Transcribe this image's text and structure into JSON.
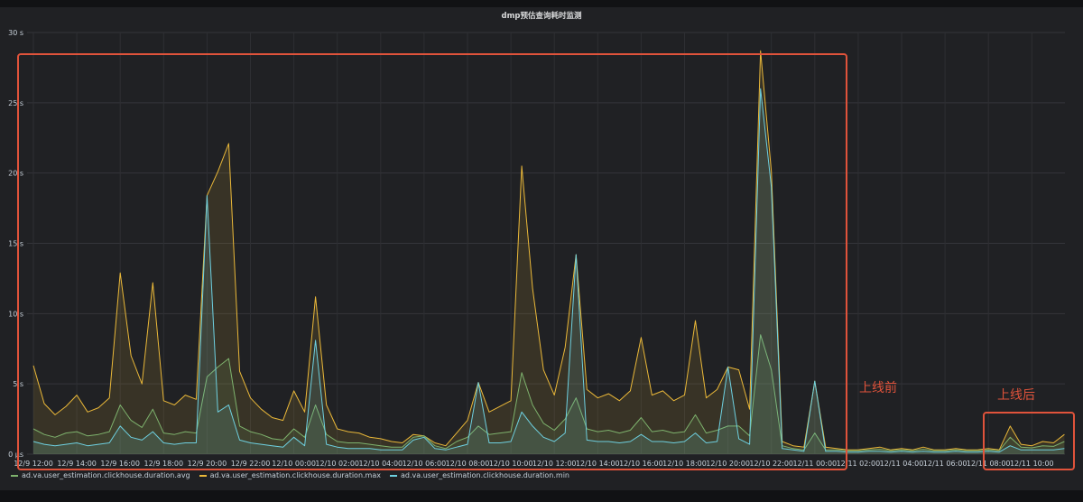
{
  "panel": {
    "title": "dmp预估查询耗时监测"
  },
  "annotations": [
    {
      "label": "上线前",
      "color": "#e0533b"
    },
    {
      "label": "上线后",
      "color": "#e0533b"
    }
  ],
  "chart_data": {
    "type": "line",
    "title": "dmp预估查询耗时监测",
    "xlabel": "",
    "ylabel": "",
    "ylim": [
      0,
      30
    ],
    "y_unit": "s",
    "grid": true,
    "legend_position": "bottom-left",
    "y_tick_labels": [
      "0 µs",
      "5 s",
      "10 s",
      "15 s",
      "20 s",
      "25 s",
      "30 s"
    ],
    "y_ticks": [
      0,
      5,
      10,
      15,
      20,
      25,
      30
    ],
    "x_tick_labels": [
      "12/9 12:00",
      "12/9 14:00",
      "12/9 16:00",
      "12/9 18:00",
      "12/9 20:00",
      "12/9 22:00",
      "12/10 00:00",
      "12/10 02:00",
      "12/10 04:00",
      "12/10 06:00",
      "12/10 08:00",
      "12/10 10:00",
      "12/10 12:00",
      "12/10 14:00",
      "12/10 16:00",
      "12/10 18:00",
      "12/10 20:00",
      "12/10 22:00",
      "12/11 00:00",
      "12/11 02:00",
      "12/11 04:00",
      "12/11 06:00",
      "12/11 08:00",
      "12/11 10:00"
    ],
    "x": [
      "12/9 12:00",
      "12/9 12:30",
      "12/9 13:00",
      "12/9 13:30",
      "12/9 14:00",
      "12/9 14:30",
      "12/9 15:00",
      "12/9 15:30",
      "12/9 16:00",
      "12/9 16:30",
      "12/9 17:00",
      "12/9 17:30",
      "12/9 18:00",
      "12/9 18:30",
      "12/9 19:00",
      "12/9 19:30",
      "12/9 20:00",
      "12/9 20:30",
      "12/9 21:00",
      "12/9 21:30",
      "12/9 22:00",
      "12/9 22:30",
      "12/9 23:00",
      "12/9 23:30",
      "12/10 00:00",
      "12/10 00:30",
      "12/10 01:00",
      "12/10 01:30",
      "12/10 02:00",
      "12/10 02:30",
      "12/10 03:00",
      "12/10 03:30",
      "12/10 04:00",
      "12/10 04:30",
      "12/10 05:00",
      "12/10 05:30",
      "12/10 06:00",
      "12/10 06:30",
      "12/10 07:00",
      "12/10 07:30",
      "12/10 08:00",
      "12/10 08:30",
      "12/10 09:00",
      "12/10 09:30",
      "12/10 10:00",
      "12/10 10:30",
      "12/10 11:00",
      "12/10 11:30",
      "12/10 12:00",
      "12/10 12:30",
      "12/10 13:00",
      "12/10 13:30",
      "12/10 14:00",
      "12/10 14:30",
      "12/10 15:00",
      "12/10 15:30",
      "12/10 16:00",
      "12/10 16:30",
      "12/10 17:00",
      "12/10 17:30",
      "12/10 18:00",
      "12/10 18:30",
      "12/10 19:00",
      "12/10 19:30",
      "12/10 20:00",
      "12/10 20:30",
      "12/10 21:00",
      "12/10 21:30",
      "12/10 22:00",
      "12/10 22:30",
      "12/10 23:00",
      "12/10 23:30",
      "12/11 00:00",
      "12/11 00:30",
      "12/11 01:00",
      "12/11 01:30",
      "12/11 02:00",
      "12/11 02:30",
      "12/11 03:00",
      "12/11 03:30",
      "12/11 04:00",
      "12/11 04:30",
      "12/11 05:00",
      "12/11 05:30",
      "12/11 06:00",
      "12/11 06:30",
      "12/11 07:00",
      "12/11 07:30",
      "12/11 08:00",
      "12/11 08:30",
      "12/11 09:00",
      "12/11 09:30",
      "12/11 10:00",
      "12/11 10:30",
      "12/11 11:00",
      "12/11 11:30"
    ],
    "series": [
      {
        "name": "ad.va.user_estimation.clickhouse.duration.avg",
        "color": "#7EB26D",
        "values": [
          1.8,
          1.4,
          1.2,
          1.5,
          1.6,
          1.3,
          1.4,
          1.6,
          3.5,
          2.4,
          1.9,
          3.2,
          1.5,
          1.4,
          1.6,
          1.5,
          5.5,
          6.2,
          6.8,
          2.0,
          1.6,
          1.4,
          1.1,
          1.0,
          1.8,
          1.2,
          3.5,
          1.4,
          0.9,
          0.8,
          0.8,
          0.7,
          0.6,
          0.5,
          0.5,
          1.2,
          1.3,
          0.6,
          0.4,
          0.9,
          1.2,
          2.0,
          1.4,
          1.5,
          1.6,
          5.8,
          3.5,
          2.2,
          1.7,
          2.5,
          4.0,
          1.8,
          1.6,
          1.7,
          1.5,
          1.7,
          2.6,
          1.6,
          1.7,
          1.5,
          1.6,
          2.8,
          1.5,
          1.7,
          2.0,
          2.0,
          1.3,
          8.5,
          6.0,
          0.6,
          0.4,
          0.3,
          1.5,
          0.3,
          0.3,
          0.25,
          0.25,
          0.3,
          0.35,
          0.25,
          0.3,
          0.25,
          0.35,
          0.25,
          0.25,
          0.3,
          0.25,
          0.25,
          0.3,
          0.25,
          1.2,
          0.5,
          0.45,
          0.6,
          0.55,
          0.9
        ]
      },
      {
        "name": "ad.va.user_estimation.clickhouse.duration.max",
        "color": "#EAB839",
        "values": [
          6.3,
          3.6,
          2.8,
          3.4,
          4.2,
          3.0,
          3.3,
          4.0,
          12.9,
          7.0,
          5.0,
          12.2,
          3.8,
          3.5,
          4.2,
          3.9,
          18.4,
          20.1,
          22.1,
          5.9,
          4.0,
          3.2,
          2.6,
          2.4,
          4.5,
          3.0,
          11.2,
          3.5,
          1.8,
          1.6,
          1.5,
          1.2,
          1.1,
          0.9,
          0.8,
          1.4,
          1.3,
          0.8,
          0.6,
          1.5,
          2.4,
          5.1,
          3.0,
          3.4,
          3.8,
          20.5,
          11.8,
          6.0,
          4.2,
          7.6,
          14.2,
          4.6,
          4.0,
          4.3,
          3.8,
          4.5,
          8.3,
          4.2,
          4.5,
          3.8,
          4.2,
          9.5,
          4.0,
          4.6,
          6.2,
          6.0,
          3.2,
          28.7,
          20.1,
          0.9,
          0.6,
          0.5,
          5.2,
          0.5,
          0.4,
          0.3,
          0.3,
          0.4,
          0.5,
          0.3,
          0.4,
          0.3,
          0.5,
          0.3,
          0.3,
          0.4,
          0.3,
          0.3,
          0.4,
          0.3,
          2.0,
          0.7,
          0.6,
          0.9,
          0.8,
          1.4
        ]
      },
      {
        "name": "ad.va.user_estimation.clickhouse.duration.min",
        "color": "#6ED0E0",
        "values": [
          0.9,
          0.7,
          0.6,
          0.7,
          0.8,
          0.6,
          0.7,
          0.8,
          2.0,
          1.2,
          1.0,
          1.6,
          0.8,
          0.7,
          0.8,
          0.8,
          18.4,
          3.0,
          3.5,
          1.0,
          0.8,
          0.7,
          0.6,
          0.5,
          1.2,
          0.6,
          8.1,
          0.7,
          0.5,
          0.4,
          0.4,
          0.4,
          0.3,
          0.3,
          0.3,
          1.0,
          1.2,
          0.4,
          0.3,
          0.5,
          0.7,
          5.1,
          0.8,
          0.8,
          0.9,
          3.0,
          2.0,
          1.2,
          0.9,
          1.5,
          14.2,
          1.0,
          0.9,
          0.9,
          0.8,
          0.9,
          1.4,
          0.9,
          0.9,
          0.8,
          0.9,
          1.5,
          0.8,
          0.9,
          6.2,
          1.1,
          0.7,
          26.0,
          19.0,
          0.4,
          0.3,
          0.2,
          5.2,
          0.2,
          0.2,
          0.15,
          0.15,
          0.2,
          0.2,
          0.15,
          0.2,
          0.15,
          0.2,
          0.15,
          0.15,
          0.2,
          0.15,
          0.15,
          0.2,
          0.15,
          0.6,
          0.3,
          0.3,
          0.3,
          0.3,
          0.4
        ]
      }
    ]
  }
}
